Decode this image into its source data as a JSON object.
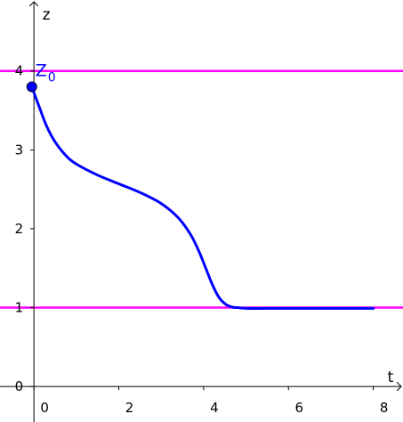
{
  "chart_data": {
    "type": "line",
    "xlabel": "t",
    "ylabel": "z",
    "xlim": [
      -0.8,
      8.7
    ],
    "ylim": [
      -0.45,
      4.9
    ],
    "x_ticks": [
      0,
      2,
      4,
      6,
      8
    ],
    "y_ticks": [
      0,
      1,
      2,
      3,
      4
    ],
    "grid": false,
    "horizontal_lines": [
      {
        "y": 4,
        "color": "#ff00ff"
      },
      {
        "y": 1,
        "color": "#ff00ff"
      }
    ],
    "series": [
      {
        "color": "#0000ff",
        "x": [
          -0.05,
          0.1,
          0.3,
          0.5,
          0.75,
          1.0,
          1.5,
          2.0,
          2.5,
          3.0,
          3.4,
          3.7,
          3.9,
          4.05,
          4.2,
          4.35,
          4.5,
          4.65,
          4.8,
          5.0,
          5.5,
          6.0,
          7.0,
          8.0
        ],
        "y": [
          3.8,
          3.58,
          3.3,
          3.1,
          2.93,
          2.82,
          2.68,
          2.57,
          2.46,
          2.32,
          2.14,
          1.92,
          1.7,
          1.5,
          1.3,
          1.14,
          1.05,
          1.01,
          1.0,
          0.99,
          0.99,
          0.99,
          0.99,
          0.99
        ]
      }
    ],
    "points": [
      {
        "label": "Z",
        "subscript": "0",
        "x": -0.05,
        "y": 3.8,
        "color": "#0000ff"
      }
    ]
  }
}
